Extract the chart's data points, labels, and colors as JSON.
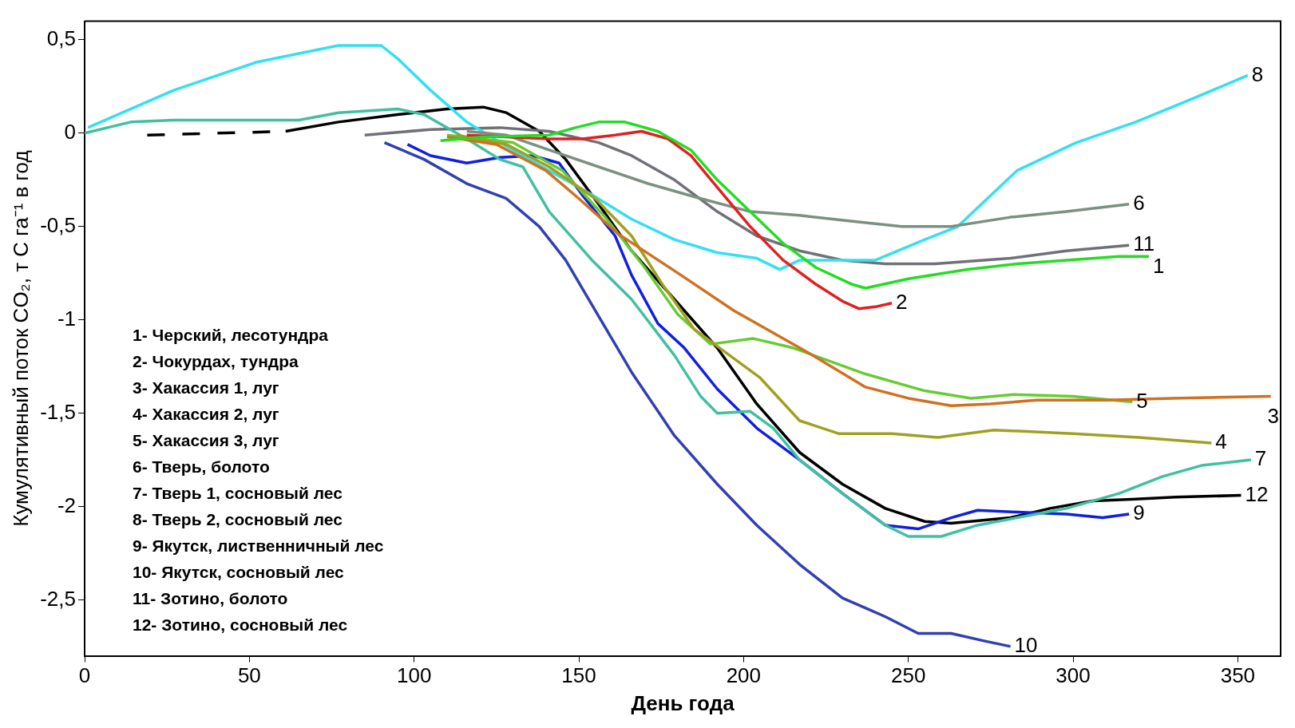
{
  "chart_data": {
    "type": "line",
    "xlabel": "День года",
    "ylabel": "Кумулятивный поток CO₂, т С га⁻¹ в год",
    "xlim": [
      0,
      363
    ],
    "xticks": [
      0,
      50,
      100,
      150,
      200,
      250,
      300,
      350
    ],
    "ylim": [
      -2.8,
      0.6
    ],
    "yticks": [
      {
        "value": 0.5,
        "label": "0,5"
      },
      0,
      {
        "value": -0.5,
        "label": "-0,5"
      },
      -1,
      {
        "value": -1.5,
        "label": "-1,5"
      },
      -2,
      {
        "value": -2.5,
        "label": "-2,5"
      }
    ],
    "grid": false,
    "legend": false,
    "marker": "none",
    "annotations": [
      "1- Черский, лесотундра",
      "2- Чокурдах, тундра",
      "3- Хакассия 1, луг",
      "4- Хакассия 2, луг",
      "5- Хакассия 3, луг",
      "6- Тверь, болото",
      "7- Тверь 1, сосновый лес",
      "8- Тверь 2, сосновый лес",
      "9- Якутск, лиственничный лес",
      "10- Якутск, сосновый лес",
      "11- Зотино, болото",
      "12- Зотино, сосновый лес"
    ],
    "series": [
      {
        "name": "1",
        "color": "#22dd22",
        "x": [
          108,
          121,
          141,
          149,
          156,
          164,
          174,
          184,
          192,
          202,
          212,
          222,
          233,
          237,
          250,
          268,
          283,
          298,
          314,
          323
        ],
        "values": [
          -0.04,
          -0.02,
          -0.01,
          0.03,
          0.06,
          0.06,
          0.01,
          -0.09,
          -0.25,
          -0.42,
          -0.59,
          -0.72,
          -0.81,
          -0.83,
          -0.78,
          -0.73,
          -0.7,
          -0.68,
          -0.66,
          -0.66
        ]
      },
      {
        "name": "2",
        "color": "#e02020",
        "x": [
          116,
          128,
          141,
          151,
          161,
          169,
          177,
          184,
          192,
          202,
          212,
          222,
          230,
          235,
          240,
          245
        ],
        "values": [
          -0.01,
          -0.02,
          -0.03,
          -0.03,
          -0.01,
          0.01,
          -0.03,
          -0.12,
          -0.29,
          -0.5,
          -0.68,
          -0.81,
          -0.9,
          -0.94,
          -0.93,
          -0.91
        ]
      },
      {
        "name": "3",
        "color": "#d07020",
        "x": [
          110,
          125,
          140,
          150,
          162,
          181,
          197,
          212,
          220,
          237,
          250,
          263,
          275,
          289,
          310,
          330,
          360
        ],
        "values": [
          -0.02,
          -0.06,
          -0.2,
          -0.35,
          -0.54,
          -0.76,
          -0.95,
          -1.1,
          -1.18,
          -1.36,
          -1.42,
          -1.46,
          -1.45,
          -1.43,
          -1.43,
          -1.42,
          -1.41
        ]
      },
      {
        "name": "4",
        "color": "#a0a020",
        "x": [
          113,
          128,
          141,
          155,
          166,
          175,
          185,
          195,
          205,
          217,
          229,
          245,
          259,
          276,
          300,
          320,
          342
        ],
        "values": [
          -0.01,
          -0.06,
          -0.18,
          -0.35,
          -0.55,
          -0.8,
          -1.05,
          -1.18,
          -1.31,
          -1.54,
          -1.61,
          -1.61,
          -1.63,
          -1.59,
          -1.61,
          -1.63,
          -1.66
        ]
      },
      {
        "name": "5",
        "color": "#66cc33",
        "x": [
          110,
          130,
          145,
          158,
          170,
          180,
          190,
          203,
          215,
          237,
          255,
          269,
          282,
          300,
          318
        ],
        "values": [
          -0.01,
          -0.05,
          -0.2,
          -0.45,
          -0.72,
          -0.97,
          -1.13,
          -1.1,
          -1.15,
          -1.29,
          -1.38,
          -1.42,
          -1.4,
          -1.41,
          -1.44
        ]
      },
      {
        "name": "6",
        "color": "#7a9080",
        "x": [
          116,
          128,
          141,
          156,
          171,
          187,
          202,
          217,
          232,
          248,
          263,
          281,
          298,
          317
        ],
        "values": [
          0.01,
          -0.01,
          -0.09,
          -0.18,
          -0.27,
          -0.35,
          -0.42,
          -0.44,
          -0.47,
          -0.5,
          -0.5,
          -0.45,
          -0.42,
          -0.38
        ]
      },
      {
        "name": "7",
        "color": "#40c0a0",
        "x": [
          0,
          14,
          27,
          65,
          77,
          95,
          103,
          116,
          126,
          133,
          141,
          154,
          166,
          179,
          187,
          192,
          202,
          209,
          217,
          230,
          243,
          250,
          260,
          271,
          283,
          298,
          314,
          327,
          339,
          354
        ],
        "values": [
          0,
          0.06,
          0.07,
          0.07,
          0.11,
          0.13,
          0.1,
          -0.03,
          -0.14,
          -0.18,
          -0.42,
          -0.68,
          -0.89,
          -1.19,
          -1.41,
          -1.5,
          -1.49,
          -1.58,
          -1.75,
          -1.93,
          -2.1,
          -2.16,
          -2.16,
          -2.1,
          -2.06,
          -2.01,
          -1.93,
          -1.84,
          -1.78,
          -1.75
        ]
      },
      {
        "name": "8",
        "color": "#33e0f0",
        "x": [
          1,
          27,
          52,
          77,
          83,
          90,
          95,
          105,
          116,
          128,
          141,
          154,
          166,
          179,
          192,
          204,
          211,
          217,
          240,
          255,
          265,
          283,
          301,
          319,
          337,
          353
        ],
        "values": [
          0.03,
          0.23,
          0.38,
          0.47,
          0.47,
          0.47,
          0.4,
          0.23,
          0.06,
          -0.07,
          -0.2,
          -0.33,
          -0.46,
          -0.57,
          -0.64,
          -0.67,
          -0.73,
          -0.68,
          -0.68,
          -0.57,
          -0.5,
          -0.2,
          -0.05,
          0.06,
          0.19,
          0.31
        ]
      },
      {
        "name": "9",
        "color": "#1020e0",
        "x": [
          98,
          105,
          116,
          126,
          136,
          144,
          151,
          161,
          166,
          174,
          182,
          192,
          204,
          217,
          230,
          243,
          253,
          263,
          271,
          283,
          298,
          309,
          317
        ],
        "values": [
          -0.06,
          -0.12,
          -0.16,
          -0.13,
          -0.12,
          -0.16,
          -0.33,
          -0.55,
          -0.76,
          -1.02,
          -1.15,
          -1.37,
          -1.58,
          -1.75,
          -1.93,
          -2.1,
          -2.12,
          -2.06,
          -2.02,
          -2.03,
          -2.04,
          -2.06,
          -2.04
        ]
      },
      {
        "name": "10",
        "color": "#3040b0",
        "x": [
          91,
          103,
          116,
          128,
          138,
          146,
          156,
          166,
          179,
          192,
          204,
          217,
          230,
          243,
          253,
          263,
          273,
          281
        ],
        "values": [
          -0.05,
          -0.14,
          -0.27,
          -0.35,
          -0.5,
          -0.68,
          -0.98,
          -1.28,
          -1.62,
          -1.88,
          -2.1,
          -2.31,
          -2.49,
          -2.59,
          -2.68,
          -2.68,
          -2.72,
          -2.75
        ]
      },
      {
        "name": "11",
        "color": "#707078",
        "x": [
          85,
          105,
          126,
          141,
          156,
          166,
          179,
          192,
          204,
          217,
          230,
          243,
          258,
          281,
          298,
          317
        ],
        "values": [
          -0.01,
          0.02,
          0.03,
          0.01,
          -0.05,
          -0.12,
          -0.25,
          -0.42,
          -0.55,
          -0.63,
          -0.68,
          -0.7,
          -0.7,
          -0.67,
          -0.63,
          -0.6
        ]
      },
      {
        "name": "12",
        "color": "#000000",
        "x": [
          61,
          77,
          95,
          110,
          121,
          128,
          138,
          146,
          156,
          166,
          179,
          192,
          204,
          217,
          230,
          243,
          255,
          263,
          281,
          293,
          306,
          319,
          331,
          351
        ],
        "values": [
          0.01,
          0.06,
          0.1,
          0.13,
          0.14,
          0.11,
          0.01,
          -0.14,
          -0.38,
          -0.63,
          -0.89,
          -1.15,
          -1.45,
          -1.71,
          -1.88,
          -2.01,
          -2.08,
          -2.09,
          -2.06,
          -2.01,
          -1.97,
          -1.96,
          -1.95,
          -1.94
        ]
      },
      {
        "color": "#000000",
        "line_style": "dashed",
        "x": [
          19,
          61
        ],
        "values": [
          -0.01,
          0.01
        ]
      }
    ]
  }
}
